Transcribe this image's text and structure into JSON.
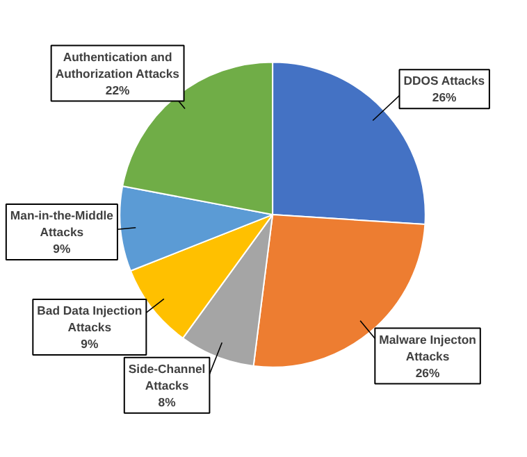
{
  "chart_data": {
    "type": "pie",
    "categories": [
      "DDOS Attacks",
      "Malware Injecton\nAttacks",
      "Side-Channel\nAttacks",
      "Bad Data Injection\nAttacks",
      "Man-in-the-Middle\nAttacks",
      "Authentication and\nAuthorization Attacks"
    ],
    "values": [
      26,
      26,
      8,
      9,
      9,
      22
    ],
    "value_labels": [
      "26%",
      "26%",
      "8%",
      "9%",
      "9%",
      "22%"
    ],
    "colors": [
      "#4472c4",
      "#ed7d31",
      "#a5a5a5",
      "#ffc000",
      "#5b9bd5",
      "#70ad47"
    ]
  }
}
